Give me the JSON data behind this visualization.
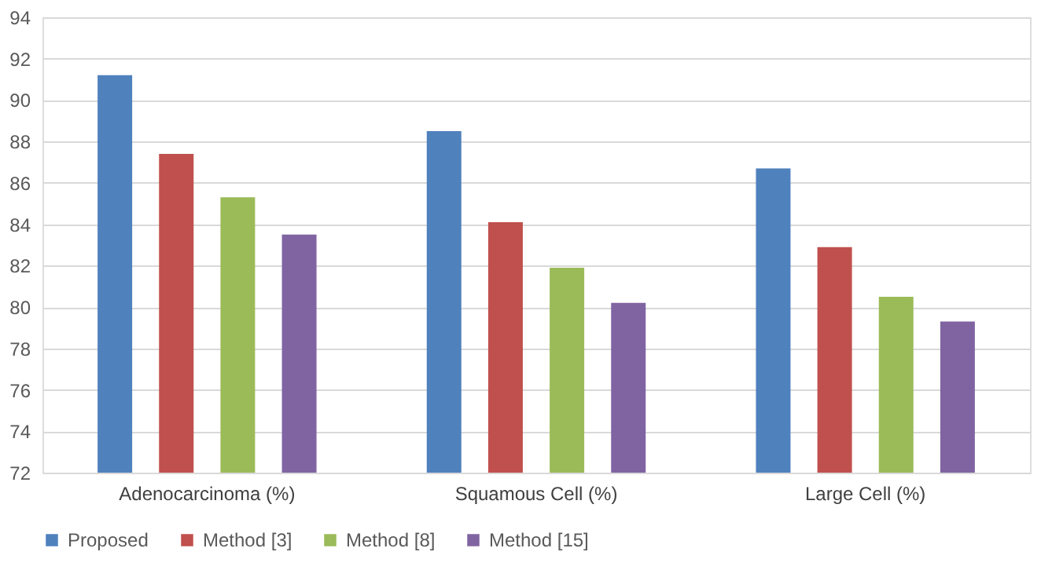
{
  "chart_data": {
    "type": "bar",
    "categories": [
      "Adenocarcinoma (%)",
      "Squamous Cell (%)",
      "Large Cell (%)"
    ],
    "series": [
      {
        "name": "Proposed",
        "color": "#4f81bd",
        "values": [
          91.2,
          88.5,
          86.7
        ]
      },
      {
        "name": "Method [3]",
        "color": "#c0504d",
        "values": [
          87.4,
          84.1,
          82.9
        ]
      },
      {
        "name": "Method [8]",
        "color": "#9bbb59",
        "values": [
          85.3,
          81.9,
          80.5
        ]
      },
      {
        "name": "Method [15]",
        "color": "#8064a2",
        "values": [
          83.5,
          80.2,
          79.3
        ]
      }
    ],
    "ylim": [
      72,
      94
    ],
    "yticks": [
      72,
      74,
      76,
      78,
      80,
      82,
      84,
      86,
      88,
      90,
      92,
      94
    ],
    "grid": "y",
    "legend": "bottom"
  }
}
